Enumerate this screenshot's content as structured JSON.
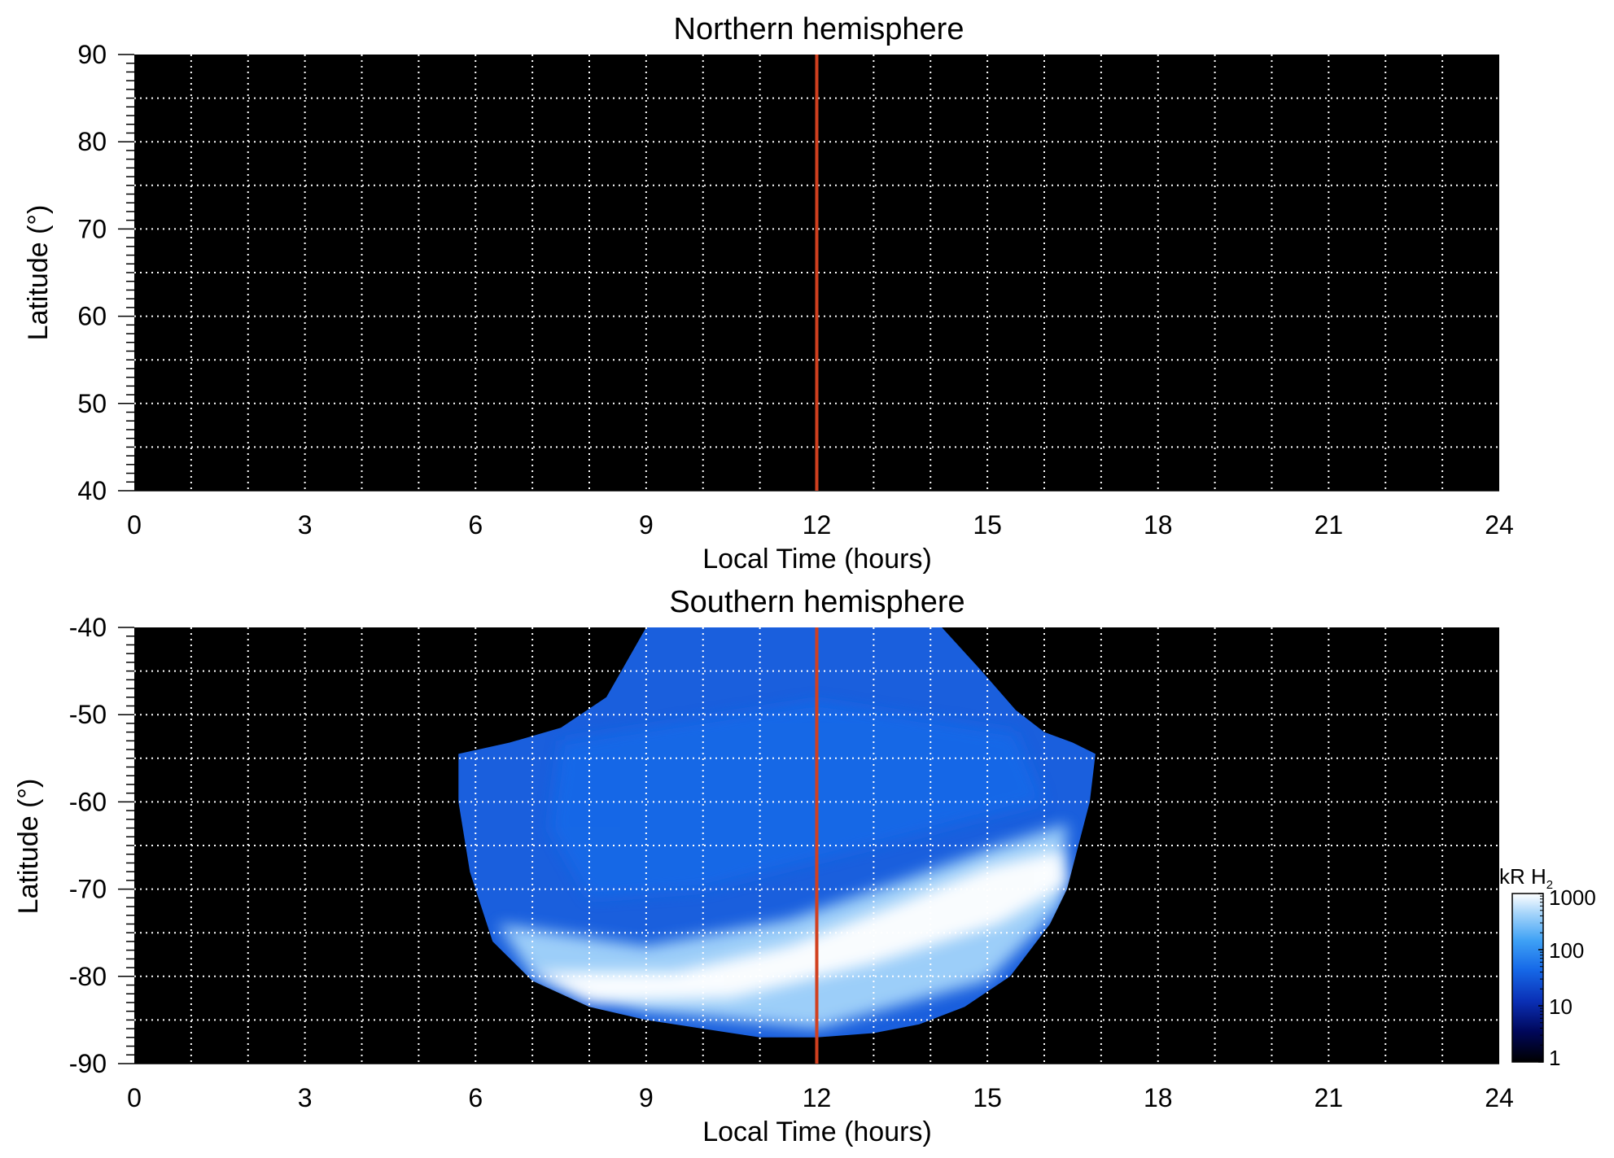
{
  "chart_data": [
    {
      "type": "heatmap",
      "title": "Northern hemisphere",
      "xlabel": "Local Time (hours)",
      "ylabel": "Latitude (°)",
      "xlim": [
        0,
        24
      ],
      "ylim": [
        40,
        90
      ],
      "x_ticks": [
        "0",
        "3",
        "6",
        "9",
        "12",
        "15",
        "18",
        "21",
        "24"
      ],
      "y_ticks": [
        "90",
        "80",
        "70",
        "60",
        "50",
        "40"
      ],
      "grid": true,
      "reference_line_x": 12,
      "reference_line_color": "#d1401f",
      "emission": []
    },
    {
      "type": "heatmap",
      "title": "Southern hemisphere",
      "xlabel": "Local Time (hours)",
      "ylabel": "Latitude (°)",
      "xlim": [
        0,
        24
      ],
      "ylim": [
        -90,
        -40
      ],
      "x_ticks": [
        "0",
        "3",
        "6",
        "9",
        "12",
        "15",
        "18",
        "21",
        "24"
      ],
      "y_ticks": [
        "-40",
        "-50",
        "-60",
        "-70",
        "-80",
        "-90"
      ],
      "grid": true,
      "reference_line_x": 12,
      "reference_line_color": "#d1401f",
      "coverage_boundary": [
        [
          5.7,
          -54.5
        ],
        [
          6.6,
          -53.2
        ],
        [
          7.5,
          -51.5
        ],
        [
          8.3,
          -48.0
        ],
        [
          9.0,
          -40.0
        ],
        [
          14.2,
          -40.0
        ],
        [
          14.9,
          -45.0
        ],
        [
          15.5,
          -49.5
        ],
        [
          16.0,
          -52.0
        ],
        [
          16.5,
          -53.2
        ],
        [
          16.9,
          -54.5
        ],
        [
          16.8,
          -60.0
        ],
        [
          16.6,
          -65.0
        ],
        [
          16.4,
          -70.0
        ],
        [
          16.1,
          -74.0
        ],
        [
          15.4,
          -80.0
        ],
        [
          14.6,
          -83.5
        ],
        [
          13.8,
          -85.5
        ],
        [
          13.0,
          -86.5
        ],
        [
          12.0,
          -87.0
        ],
        [
          11.0,
          -87.0
        ],
        [
          10.0,
          -86.0
        ],
        [
          9.0,
          -85.0
        ],
        [
          8.0,
          -83.5
        ],
        [
          7.0,
          -80.5
        ],
        [
          6.3,
          -76.0
        ],
        [
          5.9,
          -68.0
        ],
        [
          5.7,
          -60.0
        ]
      ],
      "emission_regions": [
        {
          "kR": 25,
          "polygon": [
            [
              7.5,
              -53
            ],
            [
              12,
              -48.5
            ],
            [
              15.5,
              -52
            ],
            [
              16,
              -60
            ],
            [
              13,
              -65
            ],
            [
              10,
              -70
            ],
            [
              8,
              -71
            ],
            [
              7.3,
              -63
            ]
          ]
        },
        {
          "kR": 300,
          "polygon": [
            [
              6.4,
              -74
            ],
            [
              9,
              -76.5
            ],
            [
              11.5,
              -73.5
            ],
            [
              13.5,
              -69
            ],
            [
              15.2,
              -65
            ],
            [
              16.4,
              -62.5
            ],
            [
              16.3,
              -72
            ],
            [
              15,
              -80.5
            ],
            [
              12,
              -86
            ],
            [
              9,
              -84
            ],
            [
              7,
              -80
            ]
          ]
        },
        {
          "kR": 900,
          "polygon": [
            [
              7,
              -79.5
            ],
            [
              9.5,
              -79.5
            ],
            [
              11.5,
              -76.5
            ],
            [
              13.5,
              -71.5
            ],
            [
              15,
              -67.5
            ],
            [
              16.3,
              -65.5
            ],
            [
              16.4,
              -69.5
            ],
            [
              15.2,
              -74
            ],
            [
              13,
              -78.5
            ],
            [
              10.5,
              -82.5
            ],
            [
              8,
              -83
            ]
          ]
        }
      ]
    }
  ],
  "colorbar": {
    "label_main": "kR H",
    "label_sub": "2",
    "ticks": [
      "1000",
      "100",
      "10",
      "1"
    ],
    "scale": "log",
    "range": [
      1,
      1000
    ],
    "colors": [
      "#000000",
      "#00075a",
      "#0a2fb5",
      "#1669e8",
      "#3ea1f5",
      "#a4d4fa",
      "#ffffff"
    ]
  },
  "colors": {
    "plot_background": "#000000",
    "grid": "#ffffff"
  }
}
